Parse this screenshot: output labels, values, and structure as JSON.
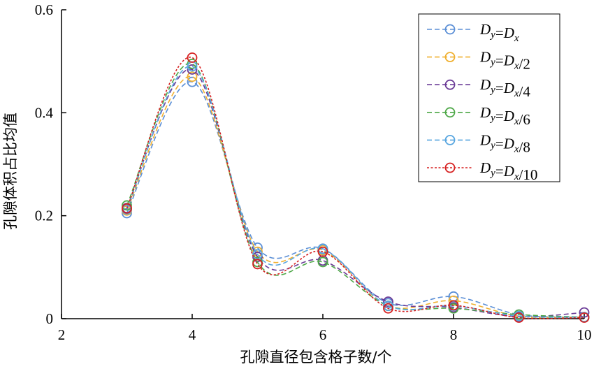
{
  "chart_data": {
    "type": "line",
    "title": "",
    "xlabel": "孔隙直径包含格子数/个",
    "ylabel": "孔隙体积占比均值",
    "xlim": [
      2,
      10
    ],
    "ylim": [
      0,
      0.6
    ],
    "xticks": [
      2,
      4,
      6,
      8,
      10
    ],
    "yticks": [
      0,
      0.2,
      0.4,
      0.6
    ],
    "xtick_labels": [
      "2",
      "4",
      "6",
      "8",
      "10"
    ],
    "ytick_labels": [
      "0",
      "0.2",
      "0.4",
      "0.6"
    ],
    "grid": false,
    "legend_position": "top-right",
    "x": [
      3,
      4,
      5,
      6,
      7,
      8,
      9,
      10
    ],
    "series": [
      {
        "legend": {
          "a": "D",
          "as": "y",
          "eq": "=",
          "b": "D",
          "bs": "x",
          "suffix": ""
        },
        "color": "#5b8fd6",
        "dash": "7,4",
        "values": [
          0.205,
          0.46,
          0.138,
          0.136,
          0.03,
          0.043,
          0.008,
          0.003
        ]
      },
      {
        "legend": {
          "a": "D",
          "as": "y",
          "eq": "=",
          "b": "D",
          "bs": "x",
          "suffix": "/2"
        },
        "color": "#f0b030",
        "dash": "7,4",
        "values": [
          0.21,
          0.47,
          0.13,
          0.133,
          0.025,
          0.035,
          0.005,
          0.003
        ]
      },
      {
        "legend": {
          "a": "D",
          "as": "y",
          "eq": "=",
          "b": "D",
          "bs": "x",
          "suffix": "/4"
        },
        "color": "#6a3a96",
        "dash": "7,4",
        "values": [
          0.215,
          0.484,
          0.12,
          0.113,
          0.033,
          0.022,
          0.004,
          0.012
        ]
      },
      {
        "legend": {
          "a": "D",
          "as": "y",
          "eq": "=",
          "b": "D",
          "bs": "x",
          "suffix": "/6"
        },
        "color": "#4ea848",
        "dash": "7,4",
        "values": [
          0.22,
          0.495,
          0.11,
          0.11,
          0.025,
          0.02,
          0.008,
          0.003
        ]
      },
      {
        "legend": {
          "a": "D",
          "as": "y",
          "eq": "=",
          "b": "D",
          "bs": "x",
          "suffix": "/8"
        },
        "color": "#58a6e0",
        "dash": "7,4",
        "values": [
          0.212,
          0.49,
          0.125,
          0.135,
          0.025,
          0.025,
          0.005,
          0.003
        ]
      },
      {
        "legend": {
          "a": "D",
          "as": "y",
          "eq": "=",
          "b": "D",
          "bs": "x",
          "suffix": "/10"
        },
        "color": "#d62020",
        "dash": "3,2.5",
        "values": [
          0.214,
          0.507,
          0.106,
          0.13,
          0.02,
          0.026,
          0.002,
          0.002
        ]
      }
    ]
  }
}
